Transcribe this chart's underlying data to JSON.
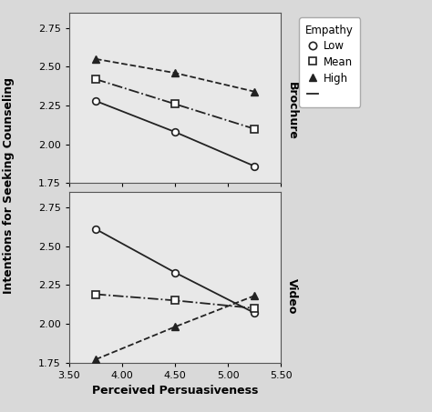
{
  "x_values": [
    3.75,
    4.5,
    5.25
  ],
  "xlim": [
    3.5,
    5.5
  ],
  "ylim": [
    1.75,
    2.85
  ],
  "yticks": [
    1.75,
    2.0,
    2.25,
    2.5,
    2.75
  ],
  "xticks": [
    3.5,
    4.0,
    4.5,
    5.0,
    5.5
  ],
  "xlabel": "Perceived Persuasiveness",
  "ylabel": "Intentions for Seeking Counseling",
  "outer_bg": "#d9d9d9",
  "panel_bg": "#e8e8e8",
  "brochure": {
    "low": [
      2.28,
      2.08,
      1.86
    ],
    "mean": [
      2.42,
      2.26,
      2.1
    ],
    "high": [
      2.55,
      2.46,
      2.34
    ]
  },
  "video": {
    "low": [
      2.61,
      2.33,
      2.07
    ],
    "mean": [
      2.19,
      2.15,
      2.1
    ],
    "high": [
      1.77,
      1.98,
      2.18
    ]
  },
  "line_color": "#222222",
  "legend_title": "Empathy",
  "label_brochure": "Brochure",
  "label_video": "Video",
  "axis_fontsize": 9,
  "tick_fontsize": 8,
  "legend_fontsize": 8.5,
  "label_fontsize": 9
}
